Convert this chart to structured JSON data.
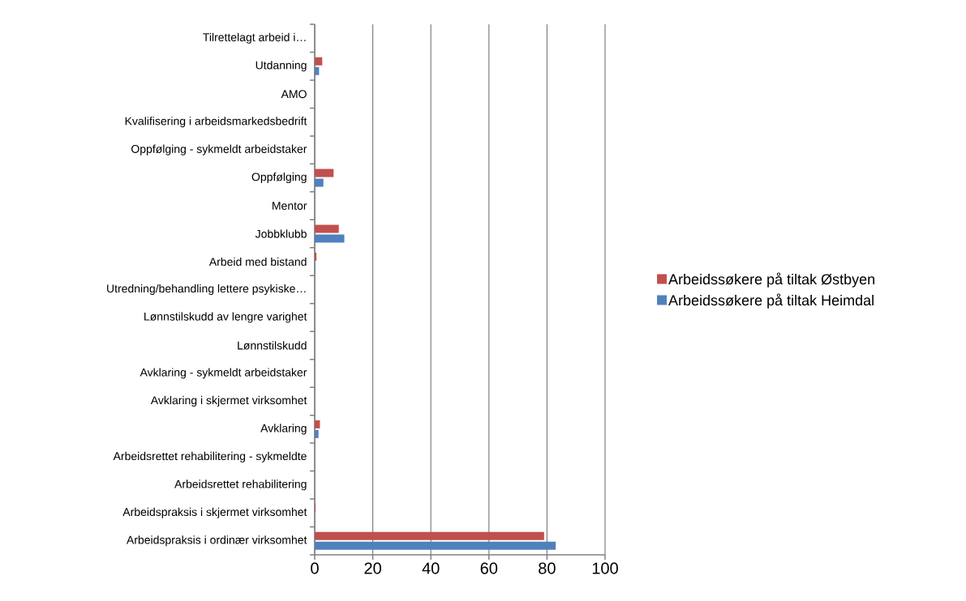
{
  "chart_data": {
    "type": "bar",
    "orientation": "horizontal",
    "categories": [
      "Tilrettelagt arbeid i…",
      "Utdanning",
      "AMO",
      "Kvalifisering i arbeidsmarkedsbedrift",
      "Oppfølging - sykmeldt arbeidstaker",
      "Oppfølging",
      "Mentor",
      "Jobbklubb",
      "Arbeid med bistand",
      "Utredning/behandling lettere psykiske…",
      "Lønnstilskudd av lengre varighet",
      "Lønnstilskudd",
      "Avklaring - sykmeldt arbeidstaker",
      "Avklaring i skjermet virksomhet",
      "Avklaring",
      "Arbeidsrettet rehabilitering - sykmeldte",
      "Arbeidsrettet rehabilitering",
      "Arbeidspraksis i skjermet virksomhet",
      "Arbeidspraksis i ordinær virksomhet"
    ],
    "series": [
      {
        "name": "Arbeidssøkere på tiltak Østbyen",
        "color": "#c0504d",
        "values": [
          0,
          2.6,
          0,
          0,
          0,
          6.5,
          0,
          8.3,
          0.6,
          0,
          0,
          0,
          0,
          0,
          1.8,
          0,
          0,
          0.3,
          79
        ]
      },
      {
        "name": "Arbeidssøkere på tiltak Heimdal",
        "color": "#4f81bd",
        "values": [
          0,
          1.5,
          0,
          0,
          0,
          3.0,
          0,
          10.2,
          0.2,
          0,
          0,
          0,
          0,
          0,
          1.3,
          0,
          0,
          0,
          83
        ]
      }
    ],
    "xlim": [
      0,
      100
    ],
    "xticks": [
      0,
      20,
      40,
      60,
      80,
      100
    ],
    "grid": "x",
    "legend": "right"
  }
}
